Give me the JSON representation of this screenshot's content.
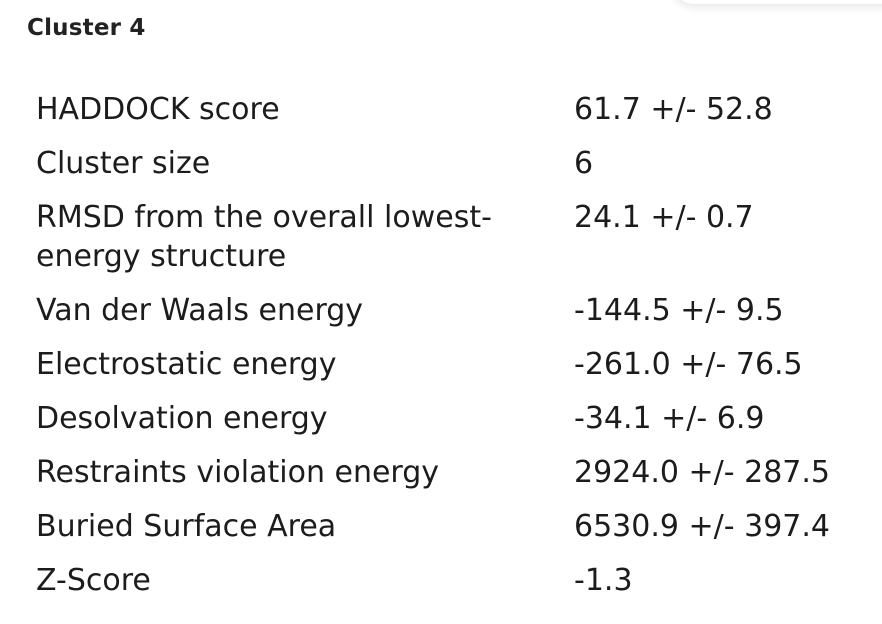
{
  "cluster": {
    "title": "Cluster 4",
    "rows": [
      {
        "label": "HADDOCK score",
        "value": "61.7 +/- 52.8"
      },
      {
        "label": "Cluster size",
        "value": "6"
      },
      {
        "label": "RMSD from the overall lowest-energy structure",
        "value": "24.1 +/- 0.7"
      },
      {
        "label": "Van der Waals energy",
        "value": "-144.5 +/- 9.5"
      },
      {
        "label": "Electrostatic energy",
        "value": "-261.0 +/- 76.5"
      },
      {
        "label": "Desolvation energy",
        "value": "-34.1 +/- 6.9"
      },
      {
        "label": "Restraints violation energy",
        "value": "2924.0 +/- 287.5"
      },
      {
        "label": "Buried Surface Area",
        "value": "6530.9 +/- 397.4"
      },
      {
        "label": "Z-Score",
        "value": "-1.3"
      }
    ]
  }
}
